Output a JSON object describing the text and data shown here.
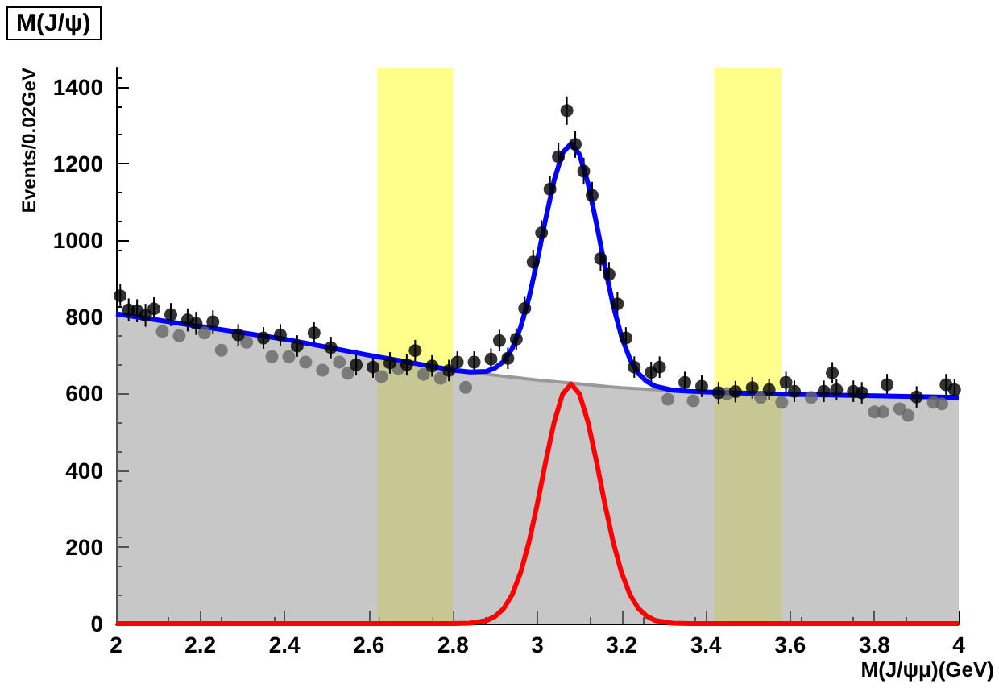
{
  "chart_data": {
    "type": "scatter",
    "title": "M(J/ψ)",
    "xlabel": "M(J/ψμ)(GeV)",
    "ylabel": "Events/0.02GeV",
    "xlim": [
      2,
      4
    ],
    "ylim": [
      0,
      1450
    ],
    "xticks": [
      2,
      2.2,
      2.4,
      2.6,
      2.8,
      3,
      3.2,
      3.4,
      3.6,
      3.8,
      4
    ],
    "yticks": [
      0,
      200,
      400,
      600,
      800,
      1000,
      1200,
      1400
    ],
    "grid": false,
    "bands": [
      {
        "axis": "x",
        "from": 2.62,
        "to": 2.8,
        "color": "#ffff66"
      },
      {
        "axis": "x",
        "from": 3.42,
        "to": 3.58,
        "color": "#ffff66"
      }
    ],
    "series": [
      {
        "type": "area",
        "color": "#999999",
        "x": [
          2.0,
          2.1,
          2.2,
          2.3,
          2.4,
          2.5,
          2.6,
          2.7,
          2.8,
          2.9,
          3.0,
          3.1,
          3.2,
          3.3,
          3.4,
          3.5,
          3.6,
          3.7,
          3.8,
          3.9,
          4.0
        ],
        "values": [
          808,
          791,
          775,
          759,
          742,
          722,
          700,
          678,
          661,
          648,
          635,
          625,
          615,
          609,
          604,
          601,
          598,
          596,
          594,
          592,
          590
        ]
      },
      {
        "marker": "circle",
        "color": "#666666",
        "x": [
          2.11,
          2.15,
          2.21,
          2.25,
          2.31,
          2.37,
          2.41,
          2.45,
          2.49,
          2.53,
          2.55,
          2.63,
          2.67,
          2.73,
          2.77,
          2.83,
          3.31,
          3.37,
          3.45,
          3.53,
          3.58,
          3.65,
          3.8,
          3.82,
          3.86,
          3.88,
          3.94,
          3.96
        ],
        "values": [
          762,
          751,
          758,
          713,
          734,
          696,
          696,
          682,
          661,
          682,
          653,
          644,
          665,
          650,
          640,
          616,
          585,
          581,
          600,
          590,
          577,
          590,
          552,
          552,
          560,
          543,
          577,
          573
        ]
      },
      {
        "type": "line",
        "color": "#0000ff",
        "x": [
          2.0,
          2.2,
          2.4,
          2.6,
          2.8,
          2.84,
          2.88,
          2.9,
          2.92,
          2.94,
          2.96,
          2.98,
          3.0,
          3.02,
          3.04,
          3.06,
          3.08,
          3.1,
          3.12,
          3.14,
          3.16,
          3.18,
          3.2,
          3.22,
          3.24,
          3.26,
          3.28,
          3.32,
          3.36,
          3.4,
          3.6,
          3.8,
          4.0
        ],
        "values": [
          808,
          775,
          742,
          700,
          661,
          656,
          658,
          667,
          684,
          717,
          772,
          849,
          948,
          1057,
          1157,
          1228,
          1252,
          1224,
          1149,
          1045,
          932,
          829,
          747,
          689,
          652,
          631,
          619,
          609,
          606,
          604,
          598,
          594,
          590
        ]
      },
      {
        "type": "line",
        "color": "#ff0000",
        "x": [
          2.0,
          2.8,
          2.84,
          2.88,
          2.9,
          2.92,
          2.94,
          2.96,
          2.98,
          3.0,
          3.02,
          3.04,
          3.06,
          3.08,
          3.1,
          3.12,
          3.14,
          3.16,
          3.18,
          3.2,
          3.22,
          3.24,
          3.26,
          3.28,
          3.32,
          3.36,
          4.0
        ],
        "values": [
          0,
          0,
          1,
          8,
          19,
          39,
          75,
          132,
          212,
          313,
          424,
          526,
          599,
          625,
          599,
          526,
          424,
          313,
          212,
          132,
          75,
          39,
          19,
          8,
          1,
          0,
          0
        ]
      },
      {
        "marker": "circle",
        "color": "#000000",
        "x": [
          2.01,
          2.03,
          2.05,
          2.07,
          2.09,
          2.13,
          2.17,
          2.19,
          2.23,
          2.29,
          2.35,
          2.39,
          2.43,
          2.47,
          2.51,
          2.57,
          2.61,
          2.65,
          2.69,
          2.71,
          2.75,
          2.79,
          2.81,
          2.85,
          2.89,
          2.91,
          2.93,
          2.95,
          2.97,
          2.99,
          3.01,
          3.03,
          3.05,
          3.07,
          3.09,
          3.11,
          3.13,
          3.15,
          3.17,
          3.19,
          3.21,
          3.23,
          3.27,
          3.29,
          3.35,
          3.39,
          3.43,
          3.47,
          3.51,
          3.55,
          3.59,
          3.61,
          3.68,
          3.7,
          3.71,
          3.75,
          3.77,
          3.83,
          3.9,
          3.97,
          3.99
        ],
        "values": [
          855,
          818,
          816,
          804,
          821,
          806,
          792,
          783,
          787,
          753,
          745,
          753,
          724,
          758,
          720,
          675,
          669,
          680,
          675,
          712,
          672,
          660,
          682,
          682,
          690,
          738,
          692,
          742,
          822,
          943,
          1019,
          1133,
          1218,
          1338,
          1250,
          1180,
          1117,
          952,
          911,
          834,
          745,
          669,
          655,
          669,
          629,
          619,
          602,
          605,
          615,
          610,
          629,
          606,
          606,
          654,
          610,
          606,
          602,
          623,
          591,
          623,
          610
        ],
        "errors": [
          30,
          30,
          30,
          30,
          30,
          30,
          30,
          30,
          30,
          28,
          28,
          28,
          28,
          28,
          28,
          28,
          28,
          28,
          28,
          28,
          28,
          28,
          28,
          28,
          28,
          28,
          28,
          28,
          30,
          32,
          33,
          35,
          35,
          37,
          35,
          35,
          35,
          32,
          32,
          30,
          28,
          28,
          28,
          28,
          28,
          28,
          28,
          28,
          28,
          28,
          28,
          28,
          28,
          28,
          28,
          28,
          28,
          28,
          28,
          28,
          28
        ]
      }
    ]
  }
}
